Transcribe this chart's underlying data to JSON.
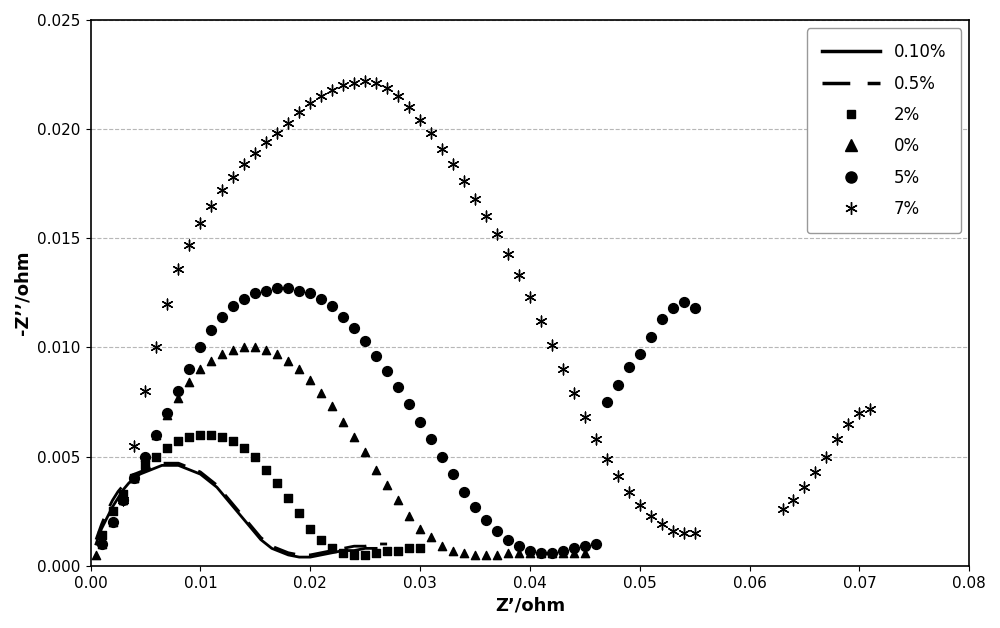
{
  "xlabel": "Z’/ohm",
  "ylabel": "-Z’’/ohm",
  "xlim": [
    0,
    0.08
  ],
  "ylim": [
    0,
    0.025
  ],
  "xticks": [
    0,
    0.01,
    0.02,
    0.03,
    0.04,
    0.05,
    0.06,
    0.07,
    0.08
  ],
  "yticks": [
    0,
    0.005,
    0.01,
    0.015,
    0.02,
    0.025
  ],
  "grid_color": "#b0b0b0",
  "background_color": "#ffffff",
  "series_010": {
    "label": "0.10%",
    "x": [
      0.0005,
      0.001,
      0.0015,
      0.002,
      0.0025,
      0.003,
      0.0035,
      0.004,
      0.0045,
      0.005,
      0.0055,
      0.006,
      0.0065,
      0.007,
      0.0075,
      0.008,
      0.0085,
      0.009,
      0.0095,
      0.01,
      0.0105,
      0.011,
      0.0115,
      0.012,
      0.0125,
      0.013,
      0.0135,
      0.014,
      0.0145,
      0.015,
      0.0155,
      0.016,
      0.0165,
      0.017,
      0.0175,
      0.018,
      0.019,
      0.02,
      0.021,
      0.022,
      0.023,
      0.024,
      0.025,
      0.026
    ],
    "y": [
      0.001,
      0.0017,
      0.0022,
      0.0027,
      0.0031,
      0.0035,
      0.0038,
      0.004,
      0.0042,
      0.0043,
      0.0044,
      0.0045,
      0.0046,
      0.0046,
      0.0046,
      0.0046,
      0.0045,
      0.0044,
      0.0043,
      0.0042,
      0.004,
      0.0038,
      0.0036,
      0.0033,
      0.003,
      0.0027,
      0.0024,
      0.0021,
      0.0018,
      0.0015,
      0.0012,
      0.001,
      0.0008,
      0.0007,
      0.0006,
      0.0005,
      0.0004,
      0.0004,
      0.0005,
      0.0006,
      0.0007,
      0.0007,
      0.0008,
      0.0008
    ]
  },
  "series_05": {
    "label": "0.5%",
    "x": [
      0.0005,
      0.001,
      0.0015,
      0.002,
      0.0025,
      0.003,
      0.0035,
      0.004,
      0.0045,
      0.005,
      0.0055,
      0.006,
      0.0065,
      0.007,
      0.0075,
      0.008,
      0.0085,
      0.009,
      0.0095,
      0.01,
      0.0105,
      0.011,
      0.0115,
      0.012,
      0.0125,
      0.013,
      0.0135,
      0.014,
      0.0145,
      0.015,
      0.0155,
      0.016,
      0.0165,
      0.017,
      0.0175,
      0.018,
      0.019,
      0.02,
      0.021,
      0.022,
      0.023,
      0.024,
      0.025,
      0.026,
      0.027
    ],
    "y": [
      0.0012,
      0.0019,
      0.0025,
      0.003,
      0.0034,
      0.0037,
      0.004,
      0.0042,
      0.0043,
      0.0044,
      0.0045,
      0.0046,
      0.0047,
      0.0047,
      0.0047,
      0.0047,
      0.0046,
      0.0045,
      0.0044,
      0.0043,
      0.0041,
      0.0039,
      0.0037,
      0.0034,
      0.0031,
      0.0028,
      0.0025,
      0.0022,
      0.0019,
      0.0016,
      0.0013,
      0.0011,
      0.0009,
      0.0008,
      0.0007,
      0.0006,
      0.0005,
      0.0005,
      0.0006,
      0.0007,
      0.0008,
      0.0009,
      0.0009,
      0.001,
      0.001
    ]
  },
  "series_2pct": {
    "label": "2%",
    "marker": "s",
    "ms": 30,
    "x": [
      0.001,
      0.002,
      0.003,
      0.004,
      0.005,
      0.006,
      0.007,
      0.008,
      0.009,
      0.01,
      0.011,
      0.012,
      0.013,
      0.014,
      0.015,
      0.016,
      0.017,
      0.018,
      0.019,
      0.02,
      0.021,
      0.022,
      0.023,
      0.024,
      0.025,
      0.026,
      0.027,
      0.028,
      0.029,
      0.03
    ],
    "y": [
      0.0014,
      0.0025,
      0.0033,
      0.004,
      0.0046,
      0.005,
      0.0054,
      0.0057,
      0.0059,
      0.006,
      0.006,
      0.0059,
      0.0057,
      0.0054,
      0.005,
      0.0044,
      0.0038,
      0.0031,
      0.0024,
      0.0017,
      0.0012,
      0.0008,
      0.0006,
      0.0005,
      0.0005,
      0.0006,
      0.0007,
      0.0007,
      0.0008,
      0.0008
    ]
  },
  "series_0pct": {
    "label": "0%",
    "marker": "^",
    "ms": 35,
    "x": [
      0.0005,
      0.001,
      0.002,
      0.003,
      0.004,
      0.005,
      0.006,
      0.007,
      0.008,
      0.009,
      0.01,
      0.011,
      0.012,
      0.013,
      0.014,
      0.015,
      0.016,
      0.017,
      0.018,
      0.019,
      0.02,
      0.021,
      0.022,
      0.023,
      0.024,
      0.025,
      0.026,
      0.027,
      0.028,
      0.029,
      0.03,
      0.031,
      0.032,
      0.033,
      0.034,
      0.035,
      0.036,
      0.037,
      0.038,
      0.039,
      0.04,
      0.041,
      0.042,
      0.043,
      0.044,
      0.045
    ],
    "y": [
      0.0005,
      0.001,
      0.002,
      0.003,
      0.004,
      0.005,
      0.006,
      0.0069,
      0.0077,
      0.0084,
      0.009,
      0.0094,
      0.0097,
      0.0099,
      0.01,
      0.01,
      0.0099,
      0.0097,
      0.0094,
      0.009,
      0.0085,
      0.0079,
      0.0073,
      0.0066,
      0.0059,
      0.0052,
      0.0044,
      0.0037,
      0.003,
      0.0023,
      0.0017,
      0.0013,
      0.0009,
      0.0007,
      0.0006,
      0.0005,
      0.0005,
      0.0005,
      0.0006,
      0.0006,
      0.0006,
      0.0006,
      0.0006,
      0.0006,
      0.0006,
      0.0006
    ]
  },
  "series_5pct": {
    "label": "5%",
    "marker": "o",
    "ms": 50,
    "x": [
      0.001,
      0.002,
      0.003,
      0.004,
      0.005,
      0.006,
      0.007,
      0.008,
      0.009,
      0.01,
      0.011,
      0.012,
      0.013,
      0.014,
      0.015,
      0.016,
      0.017,
      0.018,
      0.019,
      0.02,
      0.021,
      0.022,
      0.023,
      0.024,
      0.025,
      0.026,
      0.027,
      0.028,
      0.029,
      0.03,
      0.031,
      0.032,
      0.033,
      0.034,
      0.035,
      0.036,
      0.037,
      0.038,
      0.039,
      0.04,
      0.041,
      0.042,
      0.043,
      0.044,
      0.045,
      0.046,
      0.047,
      0.048,
      0.049,
      0.05,
      0.051,
      0.052,
      0.053,
      0.054,
      0.055
    ],
    "y": [
      0.001,
      0.002,
      0.003,
      0.004,
      0.005,
      0.006,
      0.007,
      0.008,
      0.009,
      0.01,
      0.0108,
      0.0114,
      0.0119,
      0.0122,
      0.0125,
      0.0126,
      0.0127,
      0.0127,
      0.0126,
      0.0125,
      0.0122,
      0.0119,
      0.0114,
      0.0109,
      0.0103,
      0.0096,
      0.0089,
      0.0082,
      0.0074,
      0.0066,
      0.0058,
      0.005,
      0.0042,
      0.0034,
      0.0027,
      0.0021,
      0.0016,
      0.0012,
      0.0009,
      0.0007,
      0.0006,
      0.0006,
      0.0007,
      0.0008,
      0.0009,
      0.001,
      0.0075,
      0.0083,
      0.0091,
      0.0097,
      0.0105,
      0.0113,
      0.0118,
      0.0121,
      0.0118
    ]
  },
  "series_7pct": {
    "label": "7%",
    "marker": "x_star",
    "ms": 60,
    "x": [
      0.003,
      0.004,
      0.005,
      0.006,
      0.007,
      0.008,
      0.009,
      0.01,
      0.011,
      0.012,
      0.013,
      0.014,
      0.015,
      0.016,
      0.017,
      0.018,
      0.019,
      0.02,
      0.021,
      0.022,
      0.023,
      0.024,
      0.025,
      0.026,
      0.027,
      0.028,
      0.029,
      0.03,
      0.031,
      0.032,
      0.033,
      0.034,
      0.035,
      0.036,
      0.037,
      0.038,
      0.039,
      0.04,
      0.041,
      0.042,
      0.043,
      0.044,
      0.045,
      0.046,
      0.047,
      0.048,
      0.049,
      0.05,
      0.051,
      0.052,
      0.053,
      0.054,
      0.055,
      0.063,
      0.064,
      0.065,
      0.066,
      0.067,
      0.068,
      0.069,
      0.07,
      0.071
    ],
    "y": [
      0.003,
      0.0055,
      0.008,
      0.01,
      0.012,
      0.0136,
      0.0147,
      0.0157,
      0.0165,
      0.0172,
      0.0178,
      0.0184,
      0.0189,
      0.0194,
      0.0198,
      0.0203,
      0.0208,
      0.0212,
      0.0215,
      0.0218,
      0.022,
      0.0221,
      0.0222,
      0.0221,
      0.0219,
      0.0215,
      0.021,
      0.0204,
      0.0198,
      0.0191,
      0.0184,
      0.0176,
      0.0168,
      0.016,
      0.0152,
      0.0143,
      0.0133,
      0.0123,
      0.0112,
      0.0101,
      0.009,
      0.0079,
      0.0068,
      0.0058,
      0.0049,
      0.0041,
      0.0034,
      0.0028,
      0.0023,
      0.0019,
      0.0016,
      0.0015,
      0.0015,
      0.0026,
      0.003,
      0.0036,
      0.0043,
      0.005,
      0.0058,
      0.0065,
      0.007,
      0.0072
    ]
  }
}
